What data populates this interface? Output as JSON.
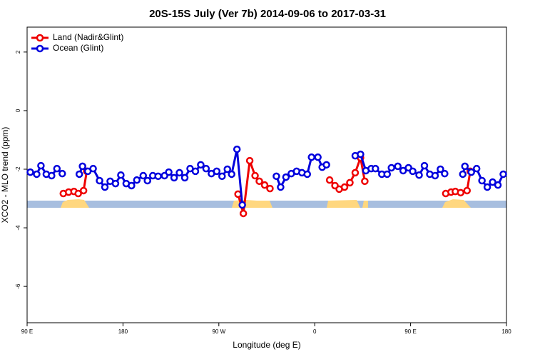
{
  "chart_data": {
    "type": "line",
    "title": "20S-15S July (Ver 7b)   2014-09-06 to 2017-03-31",
    "xlabel": "Longitude (deg E)",
    "ylabel": "XCO2 - MLO trend (ppm)",
    "xlim": [
      90,
      540
    ],
    "xticks": [
      {
        "value": 90,
        "label": "90 E"
      },
      180,
      {
        "value": 270,
        "label": "90 W"
      },
      {
        "value": 360,
        "label": "0"
      },
      {
        "value": 450,
        "label": "90 E"
      },
      {
        "value": 540,
        "label": "180"
      }
    ],
    "ylim": [
      -7.24,
      2.85
    ],
    "yticks": [
      2,
      0,
      -2,
      -4,
      -6
    ],
    "legend": "top-left",
    "series": [
      {
        "name": "Land (Nadir&Glint)",
        "color": "#ee0000",
        "x": [
          124,
          129,
          134,
          138,
          143,
          146,
          null,
          288,
          293,
          299,
          304,
          308,
          313,
          318,
          null,
          374,
          379,
          383,
          388,
          393,
          398,
          403,
          407,
          null,
          483,
          488,
          492,
          497,
          503,
          506
        ],
        "values": [
          -2.83,
          -2.78,
          -2.76,
          -2.83,
          -2.73,
          -2.07,
          null,
          -2.85,
          -3.51,
          -1.71,
          -2.22,
          -2.41,
          -2.54,
          -2.66,
          null,
          -2.37,
          -2.56,
          -2.68,
          -2.61,
          -2.46,
          -2.12,
          -1.61,
          -2.41,
          null,
          -2.83,
          -2.78,
          -2.76,
          -2.8,
          -2.73,
          -2.07
        ]
      },
      {
        "name": "Ocean (Glint)",
        "color": "#0000dd",
        "x": [
          93,
          99,
          103,
          108,
          113,
          118,
          123,
          null,
          139,
          142,
          147,
          152,
          158,
          163,
          168,
          173,
          178,
          183,
          188,
          193,
          199,
          203,
          208,
          213,
          219,
          223,
          228,
          233,
          238,
          243,
          248,
          253,
          258,
          263,
          268,
          273,
          278,
          282,
          287,
          292,
          null,
          324,
          328,
          333,
          338,
          343,
          348,
          353,
          357,
          363,
          367,
          371,
          null,
          398,
          403,
          408,
          413,
          417,
          423,
          428,
          432,
          438,
          443,
          448,
          452,
          458,
          463,
          468,
          473,
          478,
          482,
          null,
          499,
          501,
          507,
          512,
          517,
          522,
          527,
          532,
          537
        ],
        "values": [
          -2.1,
          -2.17,
          -1.88,
          -2.17,
          -2.22,
          -1.98,
          -2.15,
          null,
          -2.17,
          -1.9,
          -2.07,
          -1.98,
          -2.39,
          -2.61,
          -2.41,
          -2.49,
          -2.2,
          -2.49,
          -2.56,
          -2.37,
          -2.22,
          -2.39,
          -2.22,
          -2.24,
          -2.22,
          -2.1,
          -2.29,
          -2.12,
          -2.29,
          -1.98,
          -2.07,
          -1.85,
          -1.98,
          -2.15,
          -2.07,
          -2.24,
          -2.0,
          -2.17,
          -1.32,
          -3.22,
          null,
          -2.24,
          -2.61,
          -2.27,
          -2.15,
          -2.07,
          -2.12,
          -2.17,
          -1.59,
          -1.59,
          -1.93,
          -1.85,
          null,
          -1.54,
          -1.49,
          -2.05,
          -1.98,
          -1.98,
          -2.17,
          -2.17,
          -1.95,
          -1.9,
          -2.05,
          -1.95,
          -2.07,
          -2.2,
          -1.88,
          -2.17,
          -2.22,
          -2.0,
          -2.15,
          null,
          -2.17,
          -1.9,
          -2.1,
          -1.98,
          -2.39,
          -2.61,
          -2.44,
          -2.54,
          -2.17
        ]
      }
    ]
  }
}
